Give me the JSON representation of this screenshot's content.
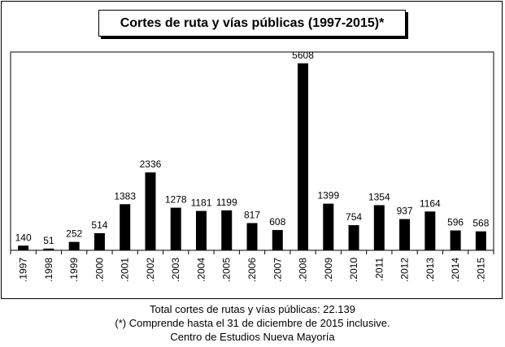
{
  "chart_data": {
    "type": "bar",
    "title": "Cortes de ruta y vías públicas (1997-2015)*",
    "categories": [
      ".1997",
      ".1998",
      ".1999",
      ".2000",
      ".2001",
      ".2002",
      ".2003",
      ".2004",
      ".2005",
      ".2006",
      ".2007",
      ".2008",
      ".2009",
      ".2010",
      ".2011",
      ".2012",
      ".2013",
      ".2014",
      ".2015"
    ],
    "values": [
      140,
      51,
      252,
      514,
      1383,
      2336,
      1278,
      1181,
      1199,
      817,
      608,
      5608,
      1399,
      754,
      1354,
      937,
      1164,
      596,
      568
    ],
    "xlabel": "",
    "ylabel": "",
    "ylim": [
      0,
      5700
    ],
    "grid": false,
    "bar_color": "#000000"
  },
  "footer": {
    "line1": "Total cortes de rutas y vías públicas: 22.139",
    "line2": "(*) Comprende hasta el 31 de diciembre de 2015 inclusive.",
    "line3": "Centro de Estudios Nueva Mayoría"
  }
}
